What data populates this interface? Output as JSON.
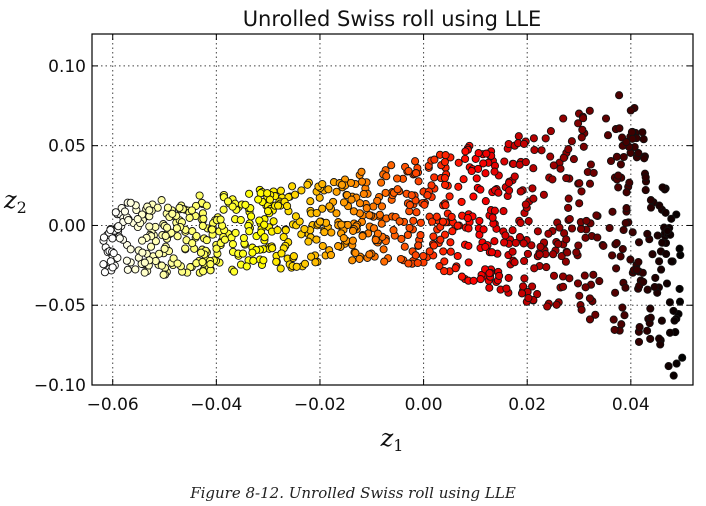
{
  "caption": "Figure 8-12. Unrolled Swiss roll using LLE",
  "chart_data": {
    "type": "scatter",
    "title": "Unrolled Swiss roll using LLE",
    "xlabel": "z",
    "xlabel_sub": "1",
    "ylabel": "z",
    "ylabel_sub": "2",
    "xlim": [
      -0.064,
      0.052
    ],
    "ylim": [
      -0.1,
      0.12
    ],
    "xticks": [
      -0.06,
      -0.04,
      -0.02,
      0.0,
      0.02,
      0.04
    ],
    "xtick_labels": [
      "−0.06",
      "−0.04",
      "−0.02",
      "0.00",
      "0.02",
      "0.04"
    ],
    "yticks": [
      -0.1,
      -0.05,
      0.0,
      0.05,
      0.1
    ],
    "ytick_labels": [
      "−0.10",
      "−0.05",
      "0.00",
      "0.05",
      "0.10"
    ],
    "grid": true,
    "colormap": "hot",
    "color_encoding": "position along the roll (left = light yellow, right = black)",
    "point_count": 1000,
    "envelope": {
      "x": [
        -0.062,
        -0.05,
        -0.03,
        -0.01,
        0.0,
        0.02,
        0.04,
        0.05
      ],
      "y_top": [
        0.013,
        0.017,
        0.023,
        0.035,
        0.044,
        0.058,
        0.085,
        0.0
      ],
      "y_bottom": [
        -0.03,
        -0.031,
        -0.028,
        -0.022,
        -0.025,
        -0.048,
        -0.07,
        -0.1
      ]
    }
  }
}
